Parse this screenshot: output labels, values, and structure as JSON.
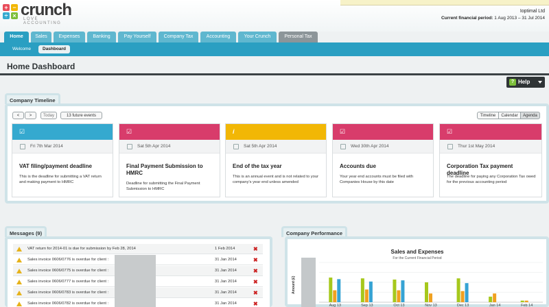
{
  "header": {
    "logo_word": "crunch",
    "logo_tagline": "LOVE ACCOUNTING",
    "company_name": "Ioptimal Ltd",
    "period_label": "Current financial period:",
    "period_value": "1 Aug 2013 – 31 Jul 2014"
  },
  "nav": {
    "tabs": [
      {
        "label": "Home"
      },
      {
        "label": "Sales"
      },
      {
        "label": "Expenses"
      },
      {
        "label": "Banking"
      },
      {
        "label": "Pay Yourself"
      },
      {
        "label": "Company Tax"
      },
      {
        "label": "Accounting"
      },
      {
        "label": "Your Crunch"
      },
      {
        "label": "Personal Tax"
      }
    ],
    "subtabs": [
      {
        "label": "Welcome"
      },
      {
        "label": "Dashboard"
      }
    ]
  },
  "page": {
    "title": "Home Dashboard",
    "help_label": "Help"
  },
  "timeline": {
    "heading": "Company Timeline",
    "prev_label": "<",
    "next_label": ">",
    "today_label": "Today",
    "future_label": "13 future events",
    "views": [
      {
        "label": "Timeline"
      },
      {
        "label": "Calendar"
      },
      {
        "label": "Agenda"
      }
    ],
    "cards": [
      {
        "color": "#35a9cf",
        "date": "Fri 7th Mar 2014",
        "title": "VAT filing/payment deadline",
        "desc": "This is the deadline for submitting a VAT return and making payment to HMRC"
      },
      {
        "color": "#d83c6b",
        "date": "Sat 5th Apr 2014",
        "title": "Final Payment Submission to HMRC",
        "desc": "Deadline for submitting the Final Payment Submission to HMRC"
      },
      {
        "color": "#f2b705",
        "date": "Sat 5th Apr 2014",
        "title": "End of the tax year",
        "desc": "This is an annual event and is not related to your company's year end unless amended"
      },
      {
        "color": "#d83c6b",
        "date": "Wed 30th Apr 2014",
        "title": "Accounts due",
        "desc": "Your year end accounts must be filed with Companies House by this date"
      },
      {
        "color": "#d83c6b",
        "date": "Thur 1st May 2014",
        "title": "Corporation Tax payment deadline",
        "desc": "The deadline for paying any Corporation Tax owed for the previous accounting period"
      }
    ]
  },
  "messages": {
    "heading": "Messages (9)",
    "rows": [
      {
        "text": "VAT return for 2014-01 is due for submission by Feb 28, 2014",
        "date": "1 Feb 2014"
      },
      {
        "text": "Sales invoice 0606/0776 is overdue for client :",
        "date": "31 Jan 2014"
      },
      {
        "text": "Sales invoice 0606/0775 is overdue for client :",
        "date": "31 Jan 2014"
      },
      {
        "text": "Sales invoice 0606/0777 is overdue for client :",
        "date": "31 Jan 2014"
      },
      {
        "text": "Sales invoice 0606/0783 is overdue for client :",
        "date": "31 Jan 2014"
      },
      {
        "text": "Sales invoice 0606/0782 is overdue for client :",
        "date": "31 Jan 2014"
      }
    ],
    "delete_glyph": "✖"
  },
  "performance": {
    "heading": "Company Performance"
  },
  "chart_data": {
    "type": "bar",
    "title": "Sales and Expenses",
    "subtitle": "For the Current Financial Period",
    "ylabel": "Amount (£)",
    "xlabel": "",
    "categories": [
      "Aug 13",
      "Sep 13",
      "Oct 13",
      "Nov 13",
      "Dec 13",
      "Jan 14",
      "Feb 14"
    ],
    "series": [
      {
        "color": "#a6c81c",
        "values": [
          0.62,
          0.6,
          0.57,
          0.5,
          0.6,
          0.14,
          0.04
        ]
      },
      {
        "color": "#f0a020",
        "values": [
          0.3,
          0.32,
          0.3,
          0.22,
          0.28,
          0.22,
          0.04
        ]
      },
      {
        "color": "#36a3d4",
        "values": [
          0.58,
          0.52,
          0.55,
          0.0,
          0.48,
          0.0,
          0.0
        ]
      }
    ],
    "ylim": [
      0,
      1
    ],
    "grid": true
  }
}
